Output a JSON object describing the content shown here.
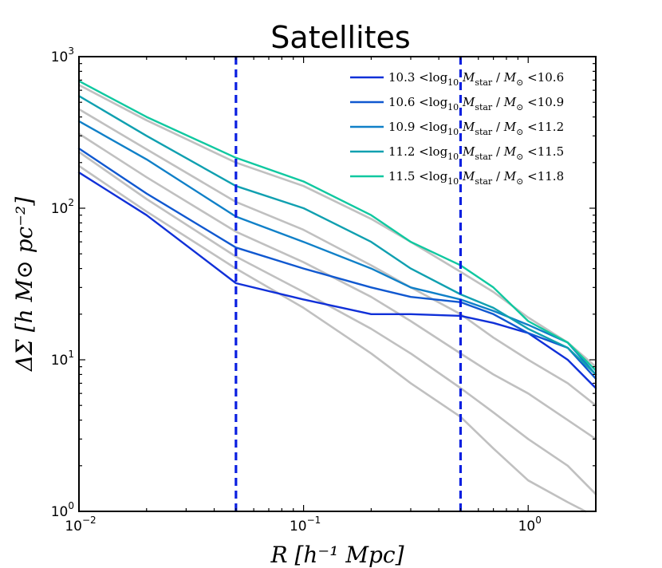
{
  "chart_data": {
    "type": "line",
    "title": "Satellites",
    "xlabel": "R [h⁻¹ Mpc]",
    "ylabel": "ΔΣ [h M⊙ pc⁻²]",
    "x_scale": "log",
    "y_scale": "log",
    "xlim": [
      0.01,
      2.0
    ],
    "ylim": [
      1,
      1000
    ],
    "x_ticks": [
      {
        "value": 0.01,
        "base": "10",
        "exp": "−2"
      },
      {
        "value": 0.1,
        "base": "10",
        "exp": "−1"
      },
      {
        "value": 1,
        "base": "10",
        "exp": "0"
      }
    ],
    "y_ticks": [
      {
        "value": 1,
        "base": "10",
        "exp": "0"
      },
      {
        "value": 10,
        "base": "10",
        "exp": "1"
      },
      {
        "value": 100,
        "base": "10",
        "exp": "2"
      },
      {
        "value": 1000,
        "base": "10",
        "exp": "3"
      }
    ],
    "vlines": [
      {
        "x": 0.05,
        "color": "#0a1fe0",
        "style": "dashed"
      },
      {
        "x": 0.5,
        "color": "#0a1fe0",
        "style": "dashed"
      }
    ],
    "legend_position": "top-right",
    "grid": false,
    "series": [
      {
        "name": "10.3 <log10 Mstar / M⊙ <10.6",
        "legend": {
          "lo": "10.3",
          "hi": "10.6"
        },
        "color": "#1030d8",
        "x": [
          0.01,
          0.02,
          0.05,
          0.1,
          0.2,
          0.3,
          0.5,
          0.7,
          1.0,
          1.5,
          2.0
        ],
        "y": [
          172,
          90,
          32,
          25,
          20,
          20,
          19.5,
          17.5,
          15,
          10,
          6.5
        ]
      },
      {
        "name": "10.6 <log10 Mstar / M⊙ <10.9",
        "legend": {
          "lo": "10.6",
          "hi": "10.9"
        },
        "color": "#1058d0",
        "x": [
          0.01,
          0.02,
          0.05,
          0.1,
          0.2,
          0.3,
          0.5,
          0.7,
          1.0,
          1.5,
          2.0
        ],
        "y": [
          248,
          125,
          55,
          40,
          30,
          26,
          24,
          20,
          15,
          12,
          7.5
        ]
      },
      {
        "name": "10.9 <log10 Mstar / M⊙ <11.2",
        "legend": {
          "lo": "10.9",
          "hi": "11.2"
        },
        "color": "#1080c8",
        "x": [
          0.01,
          0.02,
          0.05,
          0.1,
          0.2,
          0.3,
          0.5,
          0.7,
          1.0,
          1.5,
          2.0
        ],
        "y": [
          375,
          210,
          88,
          60,
          40,
          30,
          25,
          21,
          17,
          13,
          8
        ]
      },
      {
        "name": "11.2 <log10 Mstar / M⊙ <11.5",
        "legend": {
          "lo": "11.2",
          "hi": "11.5"
        },
        "color": "#10a0b0",
        "x": [
          0.01,
          0.02,
          0.05,
          0.1,
          0.2,
          0.3,
          0.5,
          0.7,
          1.0,
          1.5,
          2.0
        ],
        "y": [
          550,
          300,
          140,
          100,
          60,
          40,
          27,
          22,
          16,
          12,
          8
        ]
      },
      {
        "name": "11.5 <log10 Mstar / M⊙ <11.8",
        "legend": {
          "lo": "11.5",
          "hi": "11.8"
        },
        "color": "#10c8a0",
        "x": [
          0.01,
          0.02,
          0.05,
          0.1,
          0.2,
          0.3,
          0.5,
          0.7,
          1.0,
          1.5,
          2.0
        ],
        "y": [
          690,
          400,
          215,
          150,
          90,
          60,
          42,
          30,
          18,
          13,
          8.5
        ]
      },
      {
        "color": "#c0c0c0",
        "x": [
          0.01,
          0.02,
          0.05,
          0.1,
          0.2,
          0.3,
          0.5,
          0.7,
          1.0,
          1.5,
          1.8
        ],
        "y": [
          190,
          95,
          40,
          22,
          11,
          7,
          4.2,
          2.6,
          1.6,
          1.15,
          1.0
        ]
      },
      {
        "color": "#c0c0c0",
        "x": [
          0.01,
          0.02,
          0.05,
          0.1,
          0.2,
          0.3,
          0.5,
          0.7,
          1.0,
          1.5,
          2.0
        ],
        "y": [
          235,
          115,
          48,
          28,
          16,
          11,
          6.5,
          4.5,
          3.0,
          2.0,
          1.3
        ]
      },
      {
        "color": "#c0c0c0",
        "x": [
          0.01,
          0.02,
          0.05,
          0.1,
          0.2,
          0.3,
          0.5,
          0.7,
          1.0,
          1.5,
          2.0
        ],
        "y": [
          310,
          160,
          70,
          44,
          26,
          18,
          11,
          8,
          6,
          4,
          3
        ]
      },
      {
        "color": "#c0c0c0",
        "x": [
          0.01,
          0.02,
          0.05,
          0.1,
          0.2,
          0.3,
          0.5,
          0.7,
          1.0,
          1.5,
          2.0
        ],
        "y": [
          450,
          245,
          110,
          72,
          42,
          30,
          20,
          14,
          10,
          7,
          5
        ]
      },
      {
        "color": "#c0c0c0",
        "x": [
          0.01,
          0.02,
          0.05,
          0.1,
          0.2,
          0.3,
          0.5,
          0.7,
          1.0,
          1.5,
          2.0
        ],
        "y": [
          650,
          380,
          200,
          140,
          85,
          60,
          38,
          28,
          19,
          13,
          9
        ]
      }
    ]
  }
}
